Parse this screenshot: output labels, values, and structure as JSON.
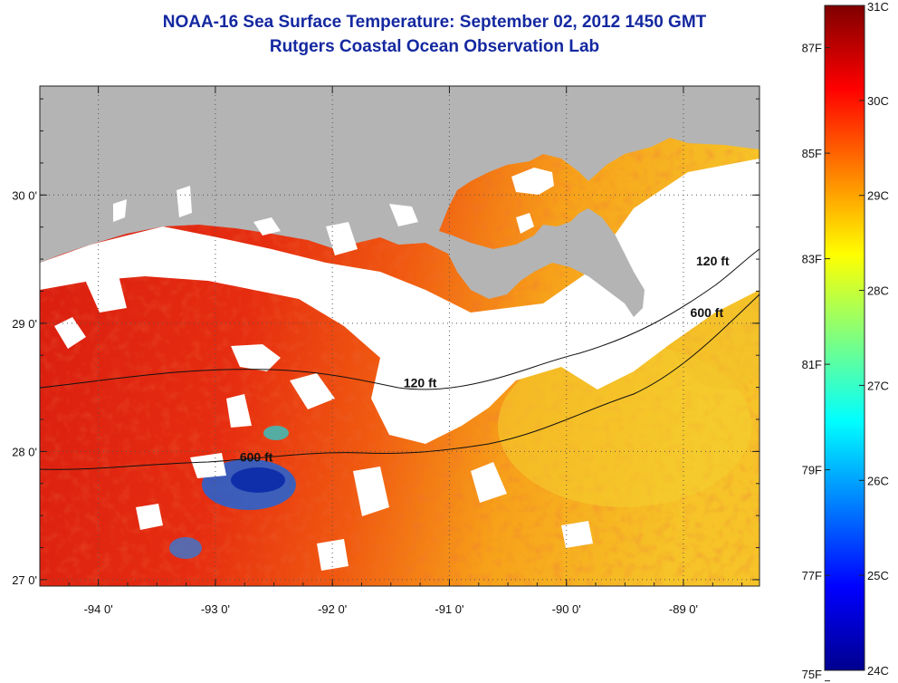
{
  "title": {
    "line1": "NOAA-16 Sea Surface Temperature:  September 02, 2012 1450 GMT",
    "line2": "Rutgers Coastal Ocean Observation Lab"
  },
  "map": {
    "lon_range": [
      -94.5,
      -88.35
    ],
    "lat_range": [
      26.95,
      30.85
    ],
    "lon_ticks": [
      {
        "value": -94,
        "label": "-94 0'"
      },
      {
        "value": -93,
        "label": "-93 0'"
      },
      {
        "value": -92,
        "label": "-92 0'"
      },
      {
        "value": -91,
        "label": "-91 0'"
      },
      {
        "value": -90,
        "label": "-90 0'"
      },
      {
        "value": -89,
        "label": "-89 0'"
      }
    ],
    "lat_ticks": [
      {
        "value": 27,
        "label": "27 0'"
      },
      {
        "value": 28,
        "label": "28 0'"
      },
      {
        "value": 29,
        "label": "29 0'"
      },
      {
        "value": 30,
        "label": "30 0'"
      }
    ],
    "contour_labels": [
      {
        "text": "120 ft",
        "lon": -91.25,
        "lat": 28.5
      },
      {
        "text": "600 ft",
        "lon": -92.65,
        "lat": 27.92
      },
      {
        "text": "120 ft",
        "lon": -88.75,
        "lat": 29.45
      },
      {
        "text": "600 ft",
        "lon": -88.8,
        "lat": 29.05
      }
    ],
    "colors": {
      "land": "#b4b4b4",
      "cloud": "#ffffff",
      "warm": "#e8240e",
      "contour": "#111111"
    }
  },
  "colorbar": {
    "range_c": [
      24,
      31
    ],
    "celsius_labels": [
      "31C",
      "30C",
      "29C",
      "28C",
      "27C",
      "26C",
      "25C",
      "24C"
    ],
    "fahrenheit_labels": [
      "87F",
      "85F",
      "83F",
      "81F",
      "79F",
      "77F",
      "75F"
    ],
    "fahrenheit_values": [
      87,
      85,
      83,
      81,
      79,
      77,
      75
    ]
  }
}
